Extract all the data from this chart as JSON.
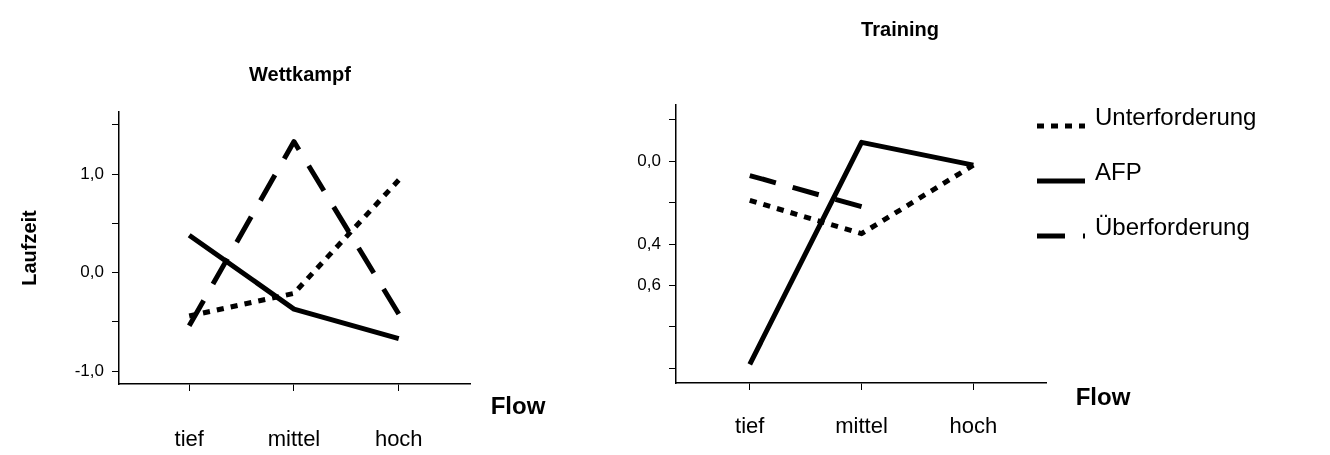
{
  "chart_data": [
    {
      "type": "line",
      "title": "Wettkampf",
      "xlabel": "Flow",
      "ylabel": "Laufzeit",
      "categories": [
        "tief",
        "mittel",
        "hoch"
      ],
      "series": [
        {
          "color": "#000000",
          "line_style": "dotted",
          "values": [
            -0.44,
            -0.21,
            0.94
          ]
        },
        {
          "color": "#000000",
          "line_style": "solid",
          "values": [
            0.38,
            -0.37,
            -0.67
          ]
        },
        {
          "color": "#000000",
          "line_style": "dashed",
          "values": [
            -0.54,
            1.33,
            -0.42
          ]
        }
      ],
      "ylim": [
        -1.13,
        1.63
      ],
      "yticks": [
        {
          "value": -1.0,
          "label": "-1,0"
        },
        {
          "value": -0.5,
          "label": null
        },
        {
          "value": 0,
          "label": "0,0"
        },
        {
          "value": 0.5,
          "label": null
        },
        {
          "value": 1.0,
          "label": "1,0"
        },
        {
          "value": 1.5,
          "label": null
        }
      ],
      "grid": false,
      "legend": false,
      "marker": "none"
    },
    {
      "type": "line",
      "title": "Training",
      "xlabel": "Flow",
      "categories": [
        "tief",
        "mittel",
        "hoch"
      ],
      "series": [
        {
          "name": "Unterforderung",
          "color": "#000000",
          "line_style": "dotted",
          "values": [
            0.19,
            0.35,
            0.02
          ]
        },
        {
          "name": "AFP",
          "color": "#000000",
          "line_style": "solid",
          "values": [
            0.98,
            -0.09,
            0.02
          ]
        },
        {
          "name": "Überforderung",
          "color": "#000000",
          "line_style": "dashed",
          "values": [
            0.07,
            0.22,
            null
          ]
        }
      ],
      "ylim": [
        1.07,
        -0.27
      ],
      "yticks": [
        {
          "value": -0.2,
          "label": null
        },
        {
          "value": 0,
          "label": "0,0"
        },
        {
          "value": 0.2,
          "label": null
        },
        {
          "value": 0.4,
          "label": "0,4"
        },
        {
          "value": 0.6,
          "label": "0,6"
        },
        {
          "value": 0.8,
          "label": null
        },
        {
          "value": 1.0,
          "label": null
        }
      ],
      "grid": false,
      "legend": "right",
      "marker": "none"
    }
  ]
}
